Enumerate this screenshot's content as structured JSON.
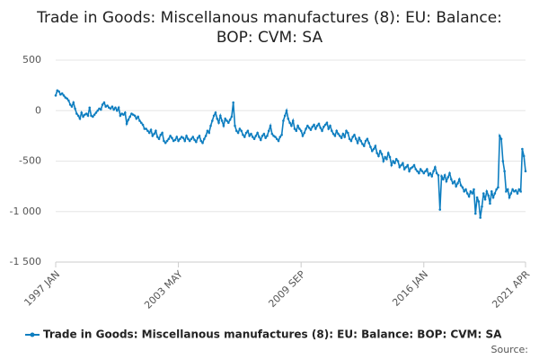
{
  "chart_data": {
    "type": "line",
    "title": "Trade in Goods: Miscellanous manufactures (8): EU: Balance: BOP: CVM: SA",
    "source": "Source:",
    "ylim": [
      -1500,
      500
    ],
    "yticks": [
      500,
      0,
      -500,
      {
        "value": -1000,
        "label": "-1 000"
      },
      {
        "value": -1500,
        "label": "-1 500"
      }
    ],
    "grid": true,
    "legend": "bottom",
    "categories": [
      "1997 JAN",
      null,
      null,
      null,
      null,
      null,
      null,
      null,
      null,
      null,
      null,
      null,
      null,
      null,
      null,
      null,
      null,
      null,
      null,
      null,
      null,
      null,
      null,
      null,
      null,
      null,
      null,
      null,
      null,
      null,
      null,
      null,
      null,
      null,
      null,
      null,
      null,
      null,
      null,
      null,
      null,
      null,
      null,
      null,
      null,
      null,
      null,
      null,
      null,
      null,
      null,
      null,
      null,
      null,
      null,
      null,
      null,
      null,
      null,
      null,
      null,
      null,
      null,
      null,
      null,
      null,
      null,
      null,
      null,
      null,
      null,
      null,
      null,
      null,
      null,
      null,
      "2003 MAY",
      null,
      null,
      null,
      null,
      null,
      null,
      null,
      null,
      null,
      null,
      null,
      null,
      null,
      null,
      null,
      null,
      null,
      null,
      null,
      null,
      null,
      null,
      null,
      null,
      null,
      null,
      null,
      null,
      null,
      null,
      null,
      null,
      null,
      null,
      null,
      null,
      null,
      null,
      null,
      null,
      null,
      null,
      null,
      null,
      null,
      null,
      null,
      null,
      null,
      null,
      null,
      null,
      null,
      null,
      null,
      null,
      null,
      null,
      null,
      null,
      null,
      null,
      null,
      null,
      null,
      null,
      null,
      null,
      null,
      null,
      null,
      null,
      null,
      null,
      null,
      "2009 SEP",
      null,
      null,
      null,
      null,
      null,
      null,
      null,
      null,
      null,
      null,
      null,
      null,
      null,
      null,
      null,
      null,
      null,
      null,
      null,
      null,
      null,
      null,
      null,
      null,
      null,
      null,
      null,
      null,
      null,
      null,
      null,
      null,
      null,
      null,
      null,
      null,
      null,
      null,
      null,
      null,
      null,
      null,
      null,
      null,
      null,
      null,
      null,
      null,
      null,
      null,
      null,
      null,
      null,
      null,
      null,
      null,
      null,
      null,
      null,
      null,
      null,
      null,
      null,
      null,
      null,
      null,
      null,
      null,
      null,
      null,
      null,
      null,
      null,
      null,
      null,
      "2016 JAN",
      null,
      null,
      null,
      null,
      null,
      null,
      null,
      null,
      null,
      null,
      null,
      null,
      null,
      null,
      null,
      null,
      null,
      null,
      null,
      null,
      null,
      null,
      null,
      null,
      null,
      null,
      null,
      null,
      null,
      null,
      null,
      null,
      null,
      null,
      null,
      null,
      null,
      null,
      null,
      null,
      null,
      null,
      null,
      null,
      null,
      null,
      null,
      null,
      null,
      null,
      null,
      null,
      null,
      null,
      null,
      null,
      null,
      null,
      null,
      null,
      null,
      null,
      "2021 APR"
    ],
    "series": [
      {
        "name": "Trade in Goods: Miscellanous manufactures (8): EU: Balance: BOP: CVM: SA",
        "color": "#0e7ec0",
        "values": [
          150,
          200,
          190,
          160,
          170,
          150,
          130,
          120,
          100,
          60,
          40,
          80,
          20,
          -30,
          -50,
          -80,
          -20,
          -60,
          -40,
          -30,
          -50,
          30,
          -50,
          -60,
          -40,
          -20,
          0,
          20,
          10,
          60,
          80,
          40,
          50,
          30,
          20,
          40,
          10,
          30,
          0,
          30,
          -50,
          -30,
          -40,
          -20,
          -130,
          -90,
          -60,
          -30,
          -40,
          -50,
          -80,
          -60,
          -100,
          -120,
          -140,
          -180,
          -180,
          -200,
          -220,
          -190,
          -250,
          -230,
          -200,
          -260,
          -280,
          -240,
          -220,
          -300,
          -320,
          -300,
          -280,
          -250,
          -270,
          -300,
          -290,
          -260,
          -300,
          -280,
          -260,
          -270,
          -300,
          -250,
          -280,
          -300,
          -280,
          -260,
          -290,
          -310,
          -270,
          -250,
          -300,
          -320,
          -280,
          -250,
          -200,
          -220,
          -150,
          -100,
          -50,
          -20,
          -80,
          -120,
          -50,
          -100,
          -150,
          -80,
          -100,
          -120,
          -90,
          -60,
          80,
          -150,
          -200,
          -220,
          -180,
          -200,
          -240,
          -260,
          -220,
          -200,
          -250,
          -230,
          -260,
          -280,
          -250,
          -220,
          -260,
          -290,
          -250,
          -230,
          -270,
          -250,
          -200,
          -150,
          -230,
          -250,
          -260,
          -280,
          -300,
          -260,
          -240,
          -100,
          -50,
          0,
          -80,
          -120,
          -150,
          -100,
          -180,
          -200,
          -150,
          -180,
          -200,
          -250,
          -220,
          -180,
          -150,
          -170,
          -190,
          -160,
          -140,
          -180,
          -150,
          -130,
          -170,
          -200,
          -160,
          -140,
          -120,
          -180,
          -150,
          -200,
          -230,
          -250,
          -200,
          -230,
          -250,
          -270,
          -230,
          -260,
          -200,
          -220,
          -280,
          -300,
          -260,
          -240,
          -280,
          -320,
          -270,
          -300,
          -330,
          -350,
          -300,
          -280,
          -320,
          -360,
          -400,
          -380,
          -350,
          -420,
          -450,
          -400,
          -430,
          -500,
          -460,
          -480,
          -420,
          -460,
          -540,
          -500,
          -520,
          -480,
          -500,
          -560,
          -540,
          -520,
          -580,
          -560,
          -540,
          -600,
          -570,
          -560,
          -540,
          -580,
          -600,
          -620,
          -580,
          -600,
          -620,
          -600,
          -580,
          -640,
          -620,
          -650,
          -600,
          -560,
          -620,
          -640,
          -980,
          -650,
          -680,
          -640,
          -700,
          -660,
          -620,
          -680,
          -720,
          -700,
          -750,
          -720,
          -680,
          -740,
          -760,
          -800,
          -780,
          -820,
          -850,
          -800,
          -820,
          -780,
          -1020,
          -860,
          -900,
          -1060,
          -950,
          -820,
          -880,
          -800,
          -840,
          -920,
          -800,
          -860,
          -820,
          -780,
          -760,
          -250,
          -280,
          -500,
          -600,
          -800,
          -780,
          -860,
          -820,
          -780,
          -800,
          -790,
          -820,
          -780,
          -800,
          -380,
          -450,
          -600
        ]
      }
    ]
  }
}
